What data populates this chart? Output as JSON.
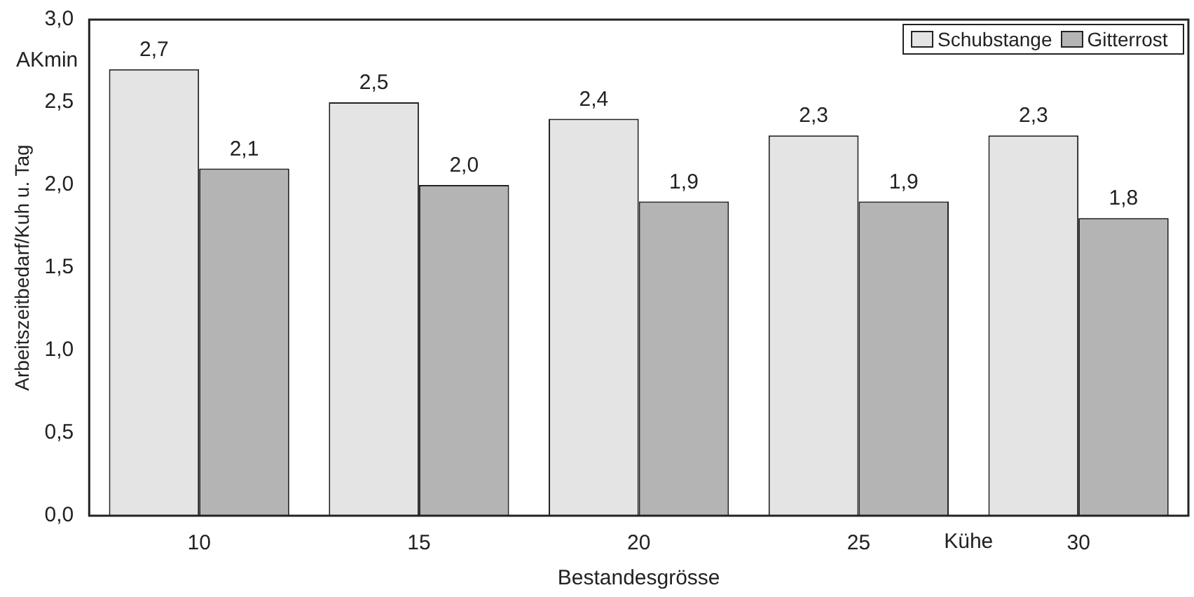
{
  "chart_data": {
    "type": "bar",
    "xlabel": "Bestandesgrösse",
    "ylabel": "Arbeitszeitbedarf/Kuh u. Tag",
    "categories": [
      "10",
      "15",
      "20",
      "25",
      "30"
    ],
    "series": [
      {
        "name": "Schubstange",
        "color": "#e4e4e4",
        "values": [
          2.7,
          2.5,
          2.4,
          2.3,
          2.3
        ],
        "value_labels": [
          "2,7",
          "2,5",
          "2,4",
          "2,3",
          "2,3"
        ]
      },
      {
        "name": "Gitterrost",
        "color": "#b4b4b4",
        "values": [
          2.1,
          2.0,
          1.9,
          1.9,
          1.8
        ],
        "value_labels": [
          "2,1",
          "2,0",
          "1,9",
          "1,9",
          "1,8"
        ]
      }
    ],
    "ylim": [
      0,
      3
    ],
    "yticks": [
      {
        "value": 0,
        "label": "0,0"
      },
      {
        "value": 0.5,
        "label": "0,5"
      },
      {
        "value": 1,
        "label": "1,0"
      },
      {
        "value": 1.5,
        "label": "1,5"
      },
      {
        "value": 2,
        "label": "2,0"
      },
      {
        "value": 2.5,
        "label": "2,5"
      },
      {
        "value": 3,
        "label": "3,0"
      }
    ],
    "annotations": [
      "AKmin",
      "Kühe"
    ],
    "grid": false,
    "legend": "top right"
  }
}
